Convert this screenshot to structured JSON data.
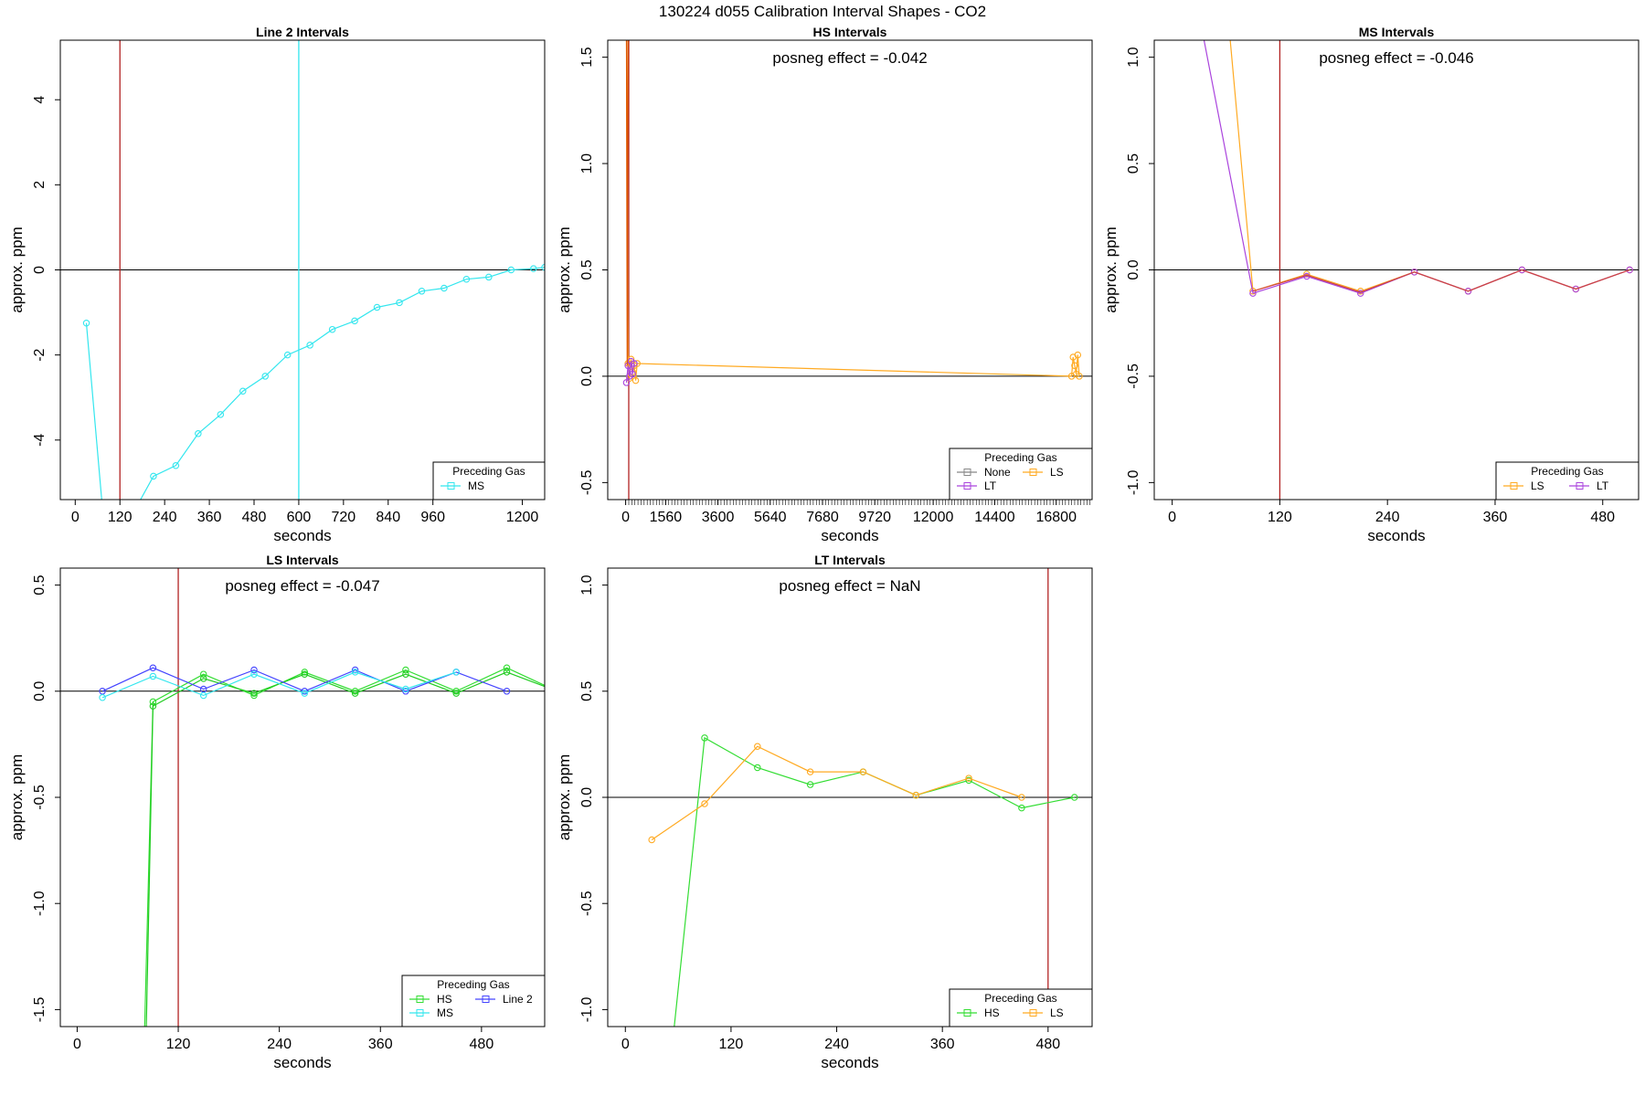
{
  "figure": {
    "title": "130224  d055   Calibration Interval Shapes - CO2"
  },
  "chart_data": [
    {
      "type": "line",
      "title": "Line 2 Intervals",
      "xlabel": "seconds",
      "ylabel": "approx. ppm",
      "xlim": [
        -40,
        1260
      ],
      "ylim": [
        -5.4,
        5.4
      ],
      "xticks": [
        0,
        120,
        240,
        360,
        480,
        600,
        720,
        840,
        960,
        1200
      ],
      "yticks": [
        -4,
        -2,
        0,
        2,
        4
      ],
      "vlines": [
        {
          "x": 120,
          "color": "#b22222"
        },
        {
          "x": 600,
          "color": "#33e6ee"
        }
      ],
      "hline": 0,
      "annotation": "",
      "legend": {
        "title": "Preceding Gas",
        "position": "bottom-right",
        "columns": 1
      },
      "series": [
        {
          "name": "MS",
          "color": "#33e6ee",
          "marker": "circle",
          "x": [
            30,
            75,
            150,
            210,
            270,
            330,
            390,
            450,
            510,
            570,
            630,
            690,
            750,
            810,
            870,
            930,
            990,
            1050,
            1110,
            1170,
            1230,
            1260
          ],
          "y": [
            -1.25,
            -5.8,
            -5.8,
            -4.85,
            -4.6,
            -3.85,
            -3.4,
            -2.85,
            -2.5,
            -2.0,
            -1.77,
            -1.4,
            -1.2,
            -0.88,
            -0.77,
            -0.5,
            -0.43,
            -0.22,
            -0.17,
            0.0,
            0.03,
            0.06
          ]
        }
      ]
    },
    {
      "type": "line",
      "title": "HS Intervals",
      "xlabel": "seconds",
      "ylabel": "approx. ppm",
      "xlim": [
        -700,
        18200
      ],
      "ylim": [
        -0.58,
        1.58
      ],
      "xticks": [
        0,
        1560,
        3600,
        5640,
        7680,
        9720,
        12000,
        14400,
        16800
      ],
      "minor_tick_step": 120,
      "yticks": [
        -0.5,
        0.0,
        0.5,
        1.0,
        1.5
      ],
      "vlines": [
        {
          "x": 120,
          "color": "#b22222"
        }
      ],
      "hline": 0,
      "annotation": "posneg effect = -0.042",
      "legend": {
        "title": "Preceding Gas",
        "position": "bottom-right",
        "columns": 2
      },
      "series": [
        {
          "name": "None",
          "color": "#888888",
          "marker": "circle",
          "x": [],
          "y": []
        },
        {
          "name": "LS",
          "color": "#ffaa22",
          "marker": "circle",
          "x": [
            30,
            90,
            150,
            210,
            270,
            330,
            390,
            450,
            17400,
            17460,
            17520,
            17580,
            17640,
            17700
          ],
          "y": [
            1.6,
            0.06,
            -0.01,
            0.08,
            0.02,
            0.05,
            -0.02,
            0.06,
            0.0,
            0.09,
            0.05,
            0.01,
            0.1,
            0.0
          ]
        },
        {
          "name": "LT",
          "color": "#aa44dd",
          "marker": "circle",
          "x": [
            30,
            90,
            150,
            210,
            270,
            330
          ],
          "y": [
            -0.03,
            0.05,
            0.0,
            0.07,
            0.01,
            0.06
          ]
        },
        {
          "name": "",
          "color": "#dd5500",
          "marker": "none",
          "x": [
            30,
            60,
            90
          ],
          "y": [
            1.6,
            0.05,
            1.6
          ]
        }
      ]
    },
    {
      "type": "line",
      "title": "MS Intervals",
      "xlabel": "seconds",
      "ylabel": "approx. ppm",
      "xlim": [
        -20,
        520
      ],
      "ylim": [
        -1.08,
        1.08
      ],
      "xticks": [
        0,
        120,
        240,
        360,
        480
      ],
      "yticks": [
        -1.0,
        -0.5,
        0.0,
        0.5,
        1.0
      ],
      "vlines": [
        {
          "x": 120,
          "color": "#b22222"
        }
      ],
      "hline": 0,
      "annotation": "posneg effect = -0.046",
      "legend": {
        "title": "Preceding Gas",
        "position": "bottom-right",
        "columns": 2
      },
      "series": [
        {
          "name": "LS",
          "color": "#ffaa22",
          "marker": "circle",
          "x": [
            60,
            90,
            150,
            210,
            270,
            330,
            390,
            450,
            510
          ],
          "y": [
            1.3,
            -0.1,
            -0.02,
            -0.1,
            -0.01,
            -0.1,
            0.0,
            -0.09,
            0.0
          ]
        },
        {
          "name": "LT",
          "color": "#aa44dd",
          "marker": "circle",
          "x": [
            30,
            90,
            150,
            210,
            270,
            330,
            390,
            450,
            510
          ],
          "y": [
            1.2,
            -0.11,
            -0.03,
            -0.11,
            -0.01,
            -0.1,
            0.0,
            -0.09,
            0.0
          ]
        },
        {
          "name": "",
          "color": "#cc4444",
          "marker": "none",
          "x": [
            90,
            150,
            210,
            270,
            330,
            390,
            450,
            510
          ],
          "y": [
            -0.1,
            -0.025,
            -0.105,
            -0.01,
            -0.1,
            0.0,
            -0.09,
            0.0
          ]
        }
      ]
    },
    {
      "type": "line",
      "title": "LS Intervals",
      "xlabel": "seconds",
      "ylabel": "approx. ppm",
      "xlim": [
        -20,
        555
      ],
      "ylim": [
        -1.58,
        0.58
      ],
      "xticks": [
        0,
        120,
        240,
        360,
        480
      ],
      "yticks": [
        -1.5,
        -1.0,
        -0.5,
        0.0,
        0.5
      ],
      "vlines": [
        {
          "x": 120,
          "color": "#b22222"
        }
      ],
      "hline": 0,
      "annotation": "posneg effect = -0.047",
      "legend": {
        "title": "Preceding Gas",
        "position": "bottom-right",
        "columns": 2
      },
      "series": [
        {
          "name": "HS",
          "color": "#33dd33",
          "marker": "circle",
          "x": [
            80,
            90,
            150,
            210,
            270,
            330,
            390,
            450,
            510,
            570
          ],
          "y": [
            -1.6,
            -0.05,
            0.08,
            -0.02,
            0.09,
            0.0,
            0.1,
            0.0,
            0.11,
            0.0
          ]
        },
        {
          "name": "",
          "color": "#22cc22",
          "marker": "circle",
          "x": [
            82,
            90,
            150,
            210,
            270,
            330,
            390,
            450,
            510,
            570
          ],
          "y": [
            -1.6,
            -0.07,
            0.06,
            -0.01,
            0.08,
            -0.01,
            0.08,
            -0.01,
            0.09,
            0.0
          ]
        },
        {
          "name": "Line 2",
          "color": "#4444ff",
          "marker": "circle",
          "x": [
            30,
            90,
            150,
            210,
            270,
            330,
            390,
            450,
            510
          ],
          "y": [
            0.0,
            0.11,
            0.01,
            0.1,
            0.0,
            0.1,
            0.0,
            0.09,
            0.0
          ]
        },
        {
          "name": "MS",
          "color": "#33e6ee",
          "marker": "circle",
          "x": [
            30,
            90,
            150,
            210,
            270,
            330,
            390,
            450
          ],
          "y": [
            -0.03,
            0.07,
            -0.02,
            0.08,
            -0.01,
            0.09,
            0.01,
            0.09
          ]
        }
      ]
    },
    {
      "type": "line",
      "title": "LT Intervals",
      "xlabel": "seconds",
      "ylabel": "approx. ppm",
      "xlim": [
        -20,
        530
      ],
      "ylim": [
        -1.08,
        1.08
      ],
      "xticks": [
        0,
        120,
        240,
        360,
        480
      ],
      "yticks": [
        -1.0,
        -0.5,
        0.0,
        0.5,
        1.0
      ],
      "vlines": [
        {
          "x": 480,
          "color": "#b22222"
        }
      ],
      "hline": 0,
      "annotation": "posneg effect = NaN",
      "legend": {
        "title": "Preceding Gas",
        "position": "bottom-right",
        "columns": 2
      },
      "series": [
        {
          "name": "HS",
          "color": "#33dd33",
          "marker": "circle",
          "x": [
            55,
            90,
            150,
            210,
            270,
            330,
            390,
            450,
            510
          ],
          "y": [
            -1.1,
            0.28,
            0.14,
            0.06,
            0.12,
            0.01,
            0.08,
            -0.05,
            0.0
          ]
        },
        {
          "name": "LS",
          "color": "#ffaa22",
          "marker": "circle",
          "x": [
            30,
            90,
            150,
            210,
            270,
            330,
            390,
            450
          ],
          "y": [
            -0.2,
            -0.03,
            0.24,
            0.12,
            0.12,
            0.01,
            0.09,
            0.0
          ]
        }
      ]
    }
  ]
}
